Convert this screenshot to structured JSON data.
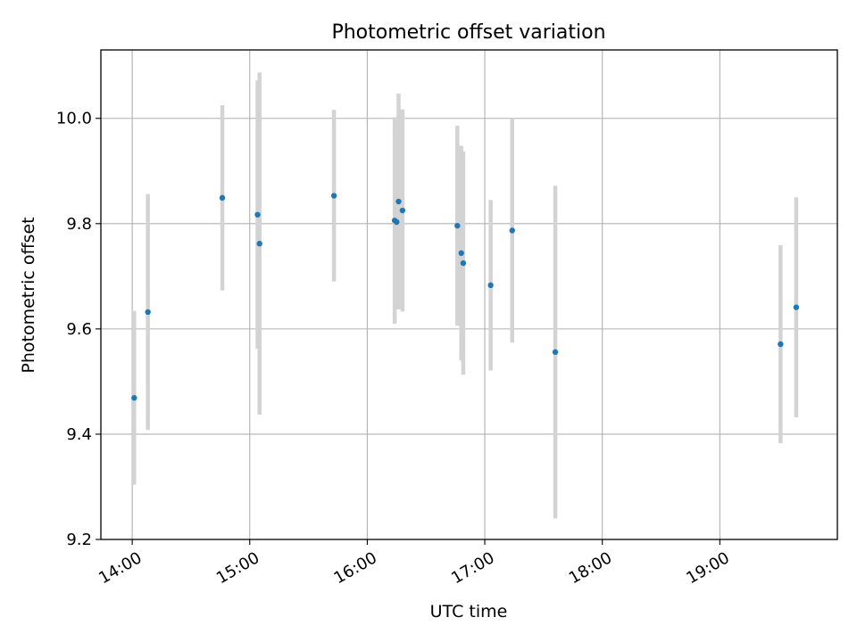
{
  "chart_data": {
    "type": "scatter",
    "title": "Photometric offset variation",
    "xlabel": "UTC time",
    "ylabel": "Photometric offset",
    "grid": true,
    "legend": "none",
    "xlim": [
      "13:44",
      "20:00"
    ],
    "ylim": [
      9.2,
      10.13
    ],
    "x_ticks": [
      "14:00",
      "15:00",
      "16:00",
      "17:00",
      "18:00",
      "19:00"
    ],
    "y_ticks": [
      "9.2",
      "9.4",
      "9.6",
      "9.8",
      "10.0"
    ],
    "series": [
      {
        "marker_color": "#1f77b4",
        "errorbar_color": "#d3d3d3",
        "points": [
          {
            "x": "14:01",
            "y": 9.469,
            "yerr": 0.165
          },
          {
            "x": "14:08",
            "y": 9.632,
            "yerr": 0.224
          },
          {
            "x": "14:46",
            "y": 9.849,
            "yerr": 0.176
          },
          {
            "x": "15:04",
            "y": 9.817,
            "yerr": 0.255
          },
          {
            "x": "15:05",
            "y": 9.762,
            "yerr": 0.325
          },
          {
            "x": "15:43",
            "y": 9.853,
            "yerr": 0.163
          },
          {
            "x": "16:14",
            "y": 9.806,
            "yerr": 0.196
          },
          {
            "x": "16:15",
            "y": 9.803,
            "yerr": 0.165
          },
          {
            "x": "16:16",
            "y": 9.842,
            "yerr": 0.205
          },
          {
            "x": "16:18",
            "y": 9.825,
            "yerr": 0.192
          },
          {
            "x": "16:46",
            "y": 9.796,
            "yerr": 0.19
          },
          {
            "x": "16:48",
            "y": 9.744,
            "yerr": 0.204
          },
          {
            "x": "16:49",
            "y": 9.725,
            "yerr": 0.212
          },
          {
            "x": "17:03",
            "y": 9.683,
            "yerr": 0.162
          },
          {
            "x": "17:14",
            "y": 9.787,
            "yerr": 0.213
          },
          {
            "x": "17:36",
            "y": 9.556,
            "yerr": 0.316
          },
          {
            "x": "19:31",
            "y": 9.571,
            "yerr": 0.188
          },
          {
            "x": "19:39",
            "y": 9.641,
            "yerr": 0.209
          }
        ]
      }
    ]
  }
}
